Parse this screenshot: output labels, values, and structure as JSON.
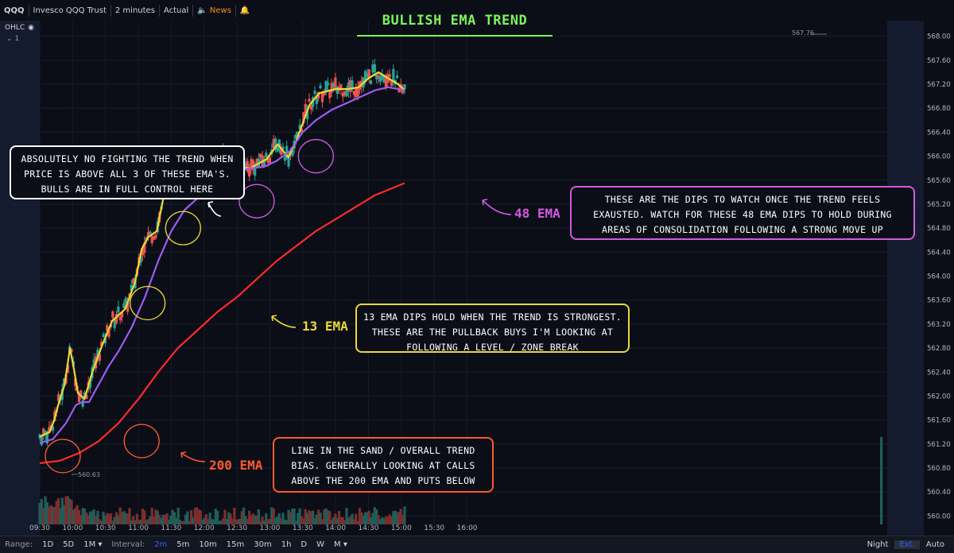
{
  "header": {
    "symbol": "QQQ",
    "name": "Invesco QQQ Trust",
    "interval": "2 minutes",
    "adjustment": "Actual",
    "news_label": "News",
    "ohlc_label": "OHLC",
    "pane_count": "1"
  },
  "title": "BULLISH EMA TREND",
  "annotations": {
    "white_note": "Absolutely no fighting the trend when price is above all 3 of these EMA's. Bulls are in full control here",
    "purple_note": "These are the dips to watch once the trend feels exausted. Watch for these 48 EMA dips to hold during areas of consolidation following a strong move up",
    "yellow_note": "13 EMA dips hold when the trend is strongest. These are the pullback buys I'm looking at following a level / zone break",
    "orange_note": "Line in the sand / overall trend bias. Generally looking at calls above the 200 EMA and puts below",
    "label_13": "13 EMA",
    "label_48": "48 EMA",
    "label_200": "200 EMA"
  },
  "price_marks": {
    "high": "567.76",
    "low": "560.63"
  },
  "colors": {
    "ema13": "#ecd936",
    "ema48": "#9b5cf0",
    "ema200": "#ff2a2a",
    "up": "#26a69a",
    "down": "#ef5350",
    "title": "#7cf55a",
    "note48": "#d35ae0",
    "note200": "#ff5a2e"
  },
  "bottom_bar": {
    "range_label": "Range:",
    "ranges": [
      "1D",
      "5D",
      "1M"
    ],
    "interval_label": "Interval:",
    "intervals": [
      "2m",
      "5m",
      "10m",
      "15m",
      "30m",
      "1h",
      "D",
      "W",
      "M"
    ],
    "active_interval": "2m",
    "night": "Night",
    "ext": "Ext.",
    "auto": "Auto"
  },
  "chart_data": {
    "type": "candlestick",
    "title": "BULLISH EMA TREND",
    "x_ticks": [
      "09:30",
      "10:00",
      "10:30",
      "11:00",
      "11:30",
      "12:00",
      "12:30",
      "13:00",
      "13:30",
      "14:00",
      "14:30",
      "15:00",
      "15:30",
      "16:00"
    ],
    "y_ticks": [
      "568.00",
      "567.60",
      "567.20",
      "566.80",
      "566.40",
      "566.00",
      "565.60",
      "565.20",
      "564.80",
      "564.40",
      "564.00",
      "563.60",
      "563.20",
      "562.80",
      "562.40",
      "562.00",
      "561.60",
      "561.20",
      "560.80",
      "560.40",
      "560.00"
    ],
    "ylim": [
      559.86,
      568.26
    ],
    "series": [
      {
        "name": "13 EMA",
        "points": [
          [
            0,
            561.32
          ],
          [
            0.15,
            561.4
          ],
          [
            0.22,
            561.6
          ],
          [
            0.28,
            561.85
          ],
          [
            0.38,
            562.2
          ],
          [
            0.46,
            562.8
          ],
          [
            0.52,
            562.45
          ],
          [
            0.58,
            562.05
          ],
          [
            0.68,
            561.95
          ],
          [
            0.8,
            562.4
          ],
          [
            0.95,
            562.85
          ],
          [
            1.1,
            563.25
          ],
          [
            1.3,
            563.45
          ],
          [
            1.45,
            563.9
          ],
          [
            1.55,
            564.45
          ],
          [
            1.65,
            564.65
          ],
          [
            1.78,
            564.75
          ],
          [
            1.88,
            565.3
          ],
          [
            2.0,
            565.75
          ],
          [
            2.1,
            566.0
          ],
          [
            2.25,
            565.9
          ],
          [
            2.42,
            565.75
          ],
          [
            2.6,
            565.92
          ],
          [
            2.8,
            565.98
          ],
          [
            3.0,
            565.82
          ],
          [
            3.2,
            565.8
          ],
          [
            3.45,
            565.95
          ],
          [
            3.62,
            566.2
          ],
          [
            3.78,
            565.98
          ],
          [
            3.9,
            566.25
          ],
          [
            4.0,
            566.55
          ],
          [
            4.1,
            566.85
          ],
          [
            4.25,
            567.05
          ],
          [
            4.5,
            567.12
          ],
          [
            4.7,
            567.12
          ],
          [
            4.85,
            567.15
          ],
          [
            5.0,
            567.3
          ],
          [
            5.15,
            567.4
          ],
          [
            5.3,
            567.3
          ],
          [
            5.45,
            567.2
          ],
          [
            5.55,
            567.1
          ]
        ]
      },
      {
        "name": "48 EMA",
        "points": [
          [
            0,
            561.22
          ],
          [
            0.2,
            561.28
          ],
          [
            0.4,
            561.55
          ],
          [
            0.55,
            561.85
          ],
          [
            0.65,
            561.9
          ],
          [
            0.75,
            561.9
          ],
          [
            0.9,
            562.2
          ],
          [
            1.05,
            562.5
          ],
          [
            1.2,
            562.75
          ],
          [
            1.4,
            563.15
          ],
          [
            1.6,
            563.65
          ],
          [
            1.8,
            564.25
          ],
          [
            2.0,
            564.75
          ],
          [
            2.2,
            565.1
          ],
          [
            2.4,
            565.3
          ],
          [
            2.6,
            565.5
          ],
          [
            2.8,
            565.68
          ],
          [
            3.0,
            565.75
          ],
          [
            3.2,
            565.8
          ],
          [
            3.4,
            565.82
          ],
          [
            3.6,
            565.92
          ],
          [
            3.8,
            566.08
          ],
          [
            4.0,
            566.4
          ],
          [
            4.2,
            566.6
          ],
          [
            4.45,
            566.78
          ],
          [
            4.7,
            566.9
          ],
          [
            4.9,
            567.0
          ],
          [
            5.1,
            567.1
          ],
          [
            5.3,
            567.15
          ],
          [
            5.55,
            567.1
          ]
        ]
      },
      {
        "name": "200 EMA",
        "points": [
          [
            0,
            560.88
          ],
          [
            0.3,
            560.92
          ],
          [
            0.6,
            561.05
          ],
          [
            0.9,
            561.25
          ],
          [
            1.2,
            561.55
          ],
          [
            1.5,
            561.95
          ],
          [
            1.8,
            562.4
          ],
          [
            2.1,
            562.8
          ],
          [
            2.4,
            563.1
          ],
          [
            2.7,
            563.4
          ],
          [
            3.0,
            563.65
          ],
          [
            3.3,
            563.95
          ],
          [
            3.6,
            564.25
          ],
          [
            3.9,
            564.5
          ],
          [
            4.2,
            564.75
          ],
          [
            4.5,
            564.95
          ],
          [
            4.8,
            565.15
          ],
          [
            5.1,
            565.35
          ],
          [
            5.55,
            565.55
          ]
        ]
      }
    ]
  }
}
